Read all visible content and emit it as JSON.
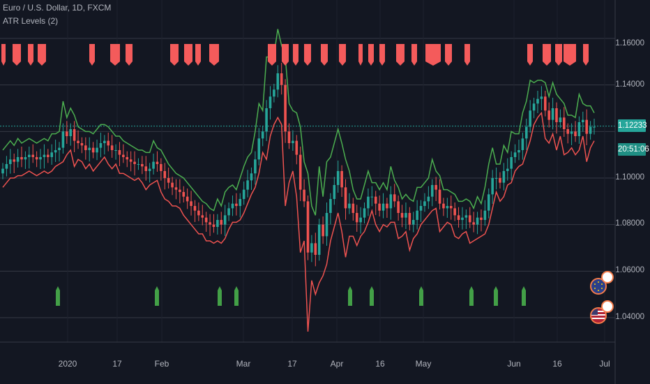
{
  "header": {
    "symbol_line": "Euro / U.S. Dollar, 1D, FXCM",
    "indicator_line": "ATR Levels (2)"
  },
  "price_axis": {
    "labels": [
      "1.16000",
      "1.14000",
      "1.12000",
      "1.10000",
      "1.08000",
      "1.06000",
      "1.04000"
    ],
    "current_price": "1.12233",
    "countdown": "20:51:06"
  },
  "date_axis": {
    "labels": [
      "2020",
      "17",
      "Feb",
      "Mar",
      "17",
      "Apr",
      "16",
      "May",
      "Jun",
      "16",
      "Jul"
    ]
  },
  "events": {
    "country_badges": [
      "EU",
      "US"
    ]
  },
  "colors": {
    "background": "#131722",
    "up": "#26a69a",
    "down": "#ef5350",
    "upper_band": "#4caf50",
    "lower_band": "#ef5350",
    "price_line": "#26a69a",
    "grid": "#363a45"
  },
  "chart_data": {
    "type": "line",
    "instrument": "EUR/USD",
    "timeframe": "1D",
    "ylim": [
      1.03,
      1.165
    ],
    "grid": true,
    "y_ticks": [
      1.16,
      1.14,
      1.12,
      1.1,
      1.08,
      1.06,
      1.04
    ],
    "current_price": 1.12233,
    "series": [
      {
        "name": "close",
        "values": [
          1.104,
          1.106,
          1.108,
          1.107,
          1.109,
          1.108,
          1.109,
          1.11,
          1.109,
          1.108,
          1.109,
          1.11,
          1.109,
          1.111,
          1.112,
          1.113,
          1.12,
          1.118,
          1.121,
          1.116,
          1.115,
          1.114,
          1.112,
          1.113,
          1.111,
          1.113,
          1.115,
          1.116,
          1.114,
          1.112,
          1.112,
          1.11,
          1.109,
          1.108,
          1.107,
          1.106,
          1.106,
          1.105,
          1.103,
          1.104,
          1.107,
          1.106,
          1.103,
          1.1,
          1.098,
          1.096,
          1.095,
          1.094,
          1.092,
          1.09,
          1.088,
          1.086,
          1.084,
          1.083,
          1.081,
          1.08,
          1.079,
          1.082,
          1.08,
          1.084,
          1.087,
          1.089,
          1.088,
          1.091,
          1.095,
          1.099,
          1.102,
          1.108,
          1.117,
          1.12,
          1.13,
          1.135,
          1.138,
          1.145,
          1.14,
          1.12,
          1.115,
          1.116,
          1.11,
          1.095,
          1.09,
          1.068,
          1.072,
          1.067,
          1.08,
          1.075,
          1.085,
          1.091,
          1.097,
          1.103,
          1.096,
          1.087,
          1.089,
          1.085,
          1.081,
          1.083,
          1.087,
          1.092,
          1.092,
          1.089,
          1.086,
          1.089,
          1.087,
          1.093,
          1.09,
          1.085,
          1.083,
          1.085,
          1.08,
          1.082,
          1.086,
          1.088,
          1.09,
          1.092,
          1.097,
          1.095,
          1.089,
          1.087,
          1.088,
          1.087,
          1.084,
          1.082,
          1.083,
          1.084,
          1.081,
          1.08,
          1.083,
          1.082,
          1.086,
          1.093,
          1.1,
          1.1,
          1.098,
          1.103,
          1.104,
          1.109,
          1.111,
          1.112,
          1.117,
          1.122,
          1.129,
          1.132,
          1.134,
          1.135,
          1.129,
          1.125,
          1.13,
          1.124,
          1.126,
          1.121,
          1.119,
          1.12,
          1.118,
          1.124,
          1.125,
          1.119,
          1.122,
          1.122
        ],
        "description": "candle closes (approx.)"
      },
      {
        "name": "upper",
        "values": "close + atr band (approx.)"
      },
      {
        "name": "lower",
        "values": "close - atr band (approx.)"
      }
    ]
  }
}
